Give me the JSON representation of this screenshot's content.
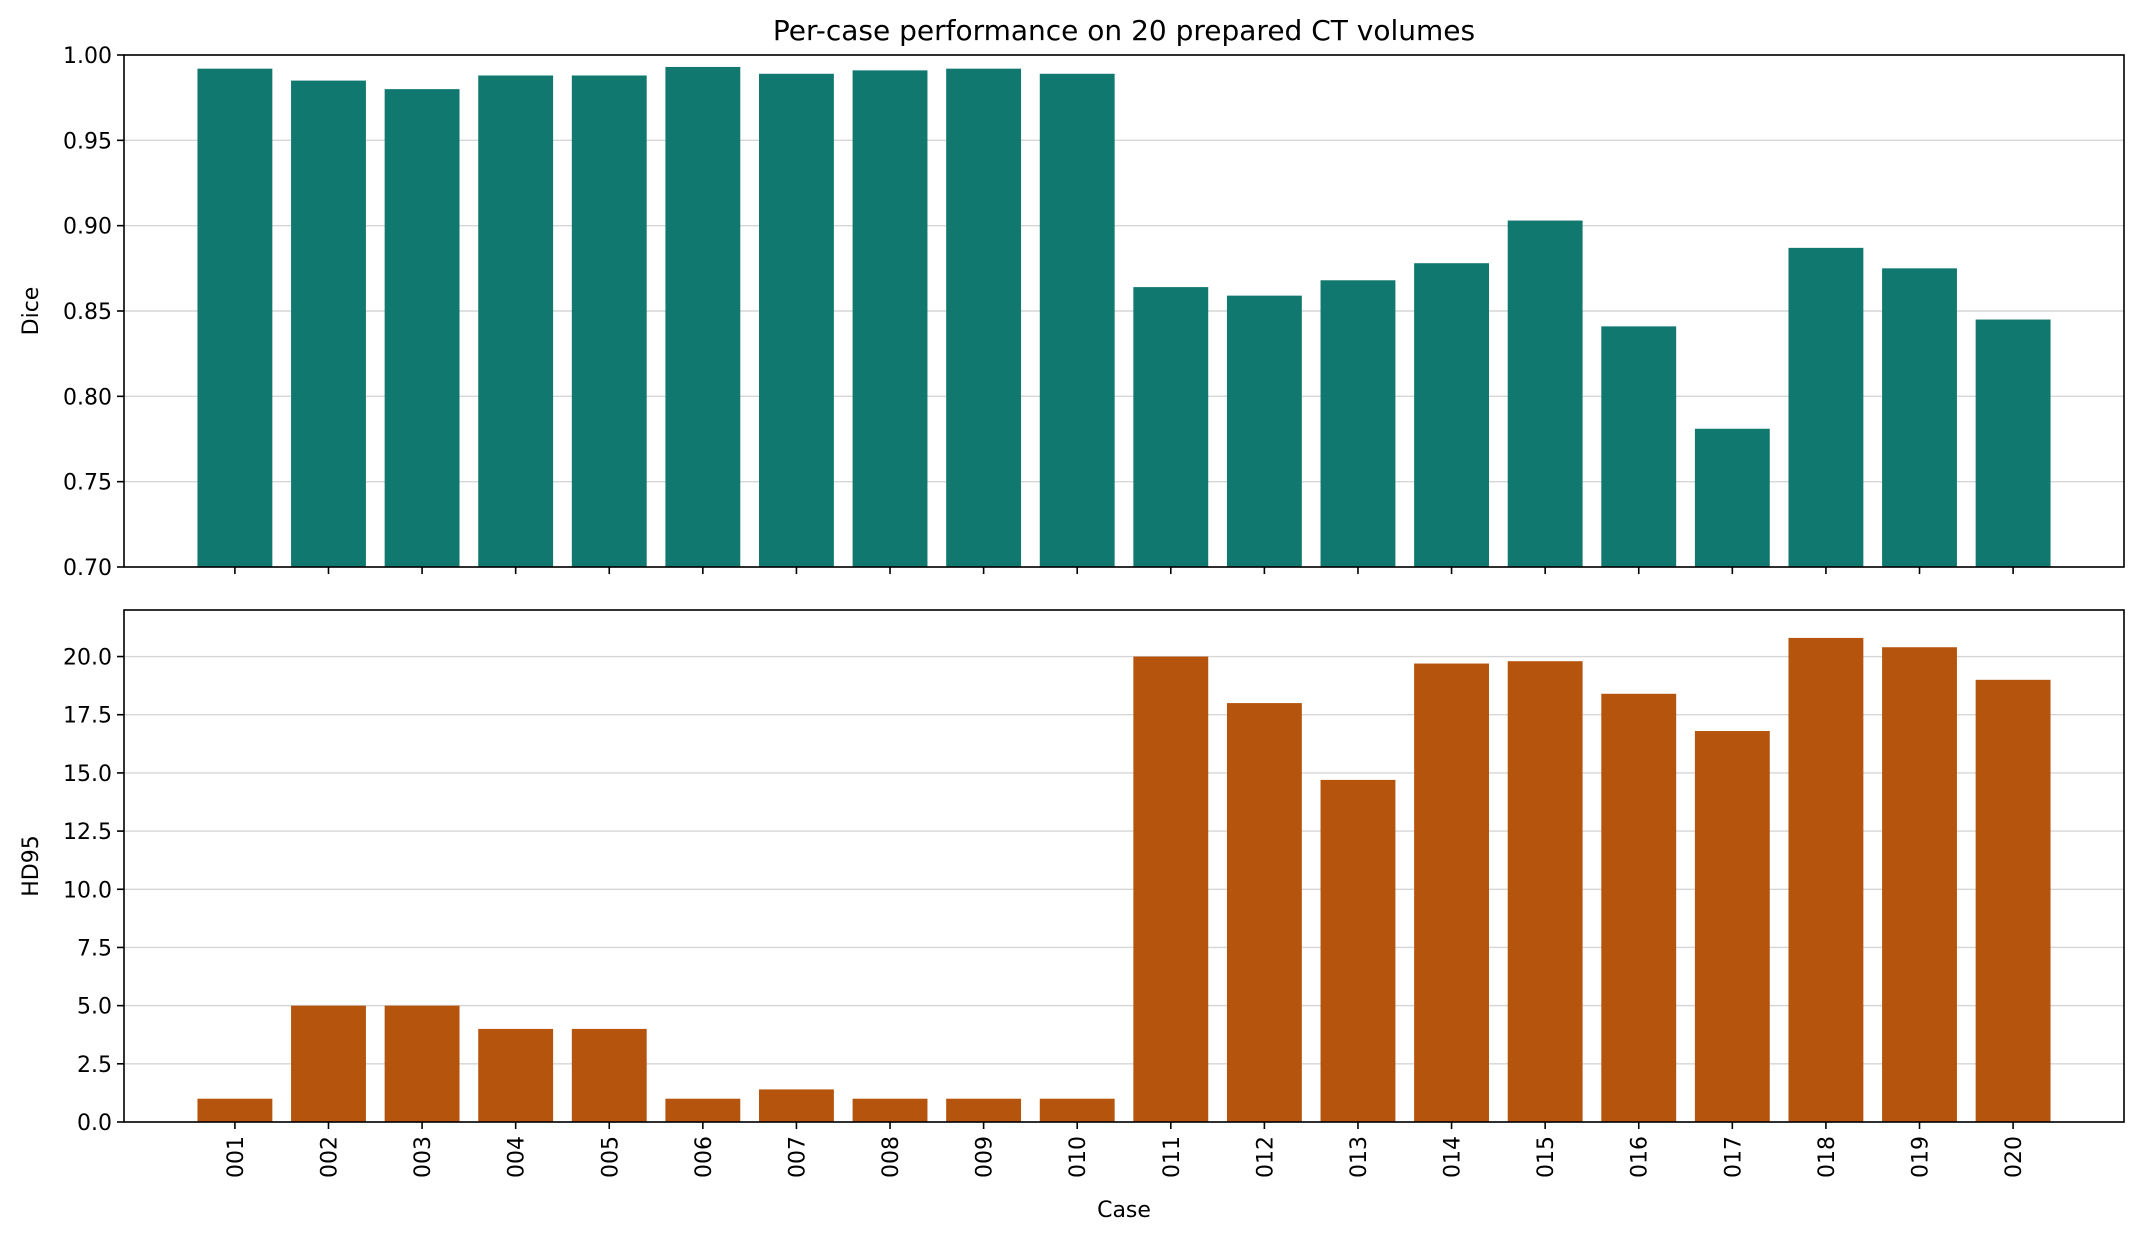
{
  "chart_data": {
    "title": "Per-case performance on 20 prepared CT volumes",
    "categories": [
      "001",
      "002",
      "003",
      "004",
      "005",
      "006",
      "007",
      "008",
      "009",
      "010",
      "011",
      "012",
      "013",
      "014",
      "015",
      "016",
      "017",
      "018",
      "019",
      "020"
    ],
    "xlabel": "Case",
    "panels": [
      {
        "type": "bar",
        "ylabel": "Dice",
        "ylim": [
          0.7,
          1.0
        ],
        "yticks": [
          "0.70",
          "0.75",
          "0.80",
          "0.85",
          "0.90",
          "0.95",
          "1.00"
        ],
        "color": "#10786f",
        "grid": "horizontal",
        "values": [
          0.992,
          0.985,
          0.98,
          0.988,
          0.988,
          0.993,
          0.989,
          0.991,
          0.992,
          0.989,
          0.864,
          0.859,
          0.868,
          0.878,
          0.903,
          0.841,
          0.781,
          0.887,
          0.875,
          0.845
        ]
      },
      {
        "type": "bar",
        "ylabel": "HD95",
        "ylim": [
          0,
          22
        ],
        "yticks": [
          "0.0",
          "2.5",
          "5.0",
          "7.5",
          "10.0",
          "12.5",
          "15.0",
          "17.5",
          "20.0"
        ],
        "color": "#b5540c",
        "grid": "horizontal",
        "values": [
          1.0,
          5.0,
          5.0,
          4.0,
          4.0,
          1.0,
          1.4,
          1.0,
          1.0,
          1.0,
          20.0,
          18.0,
          14.7,
          19.7,
          19.8,
          18.4,
          16.8,
          20.8,
          20.4,
          19.0
        ]
      }
    ]
  }
}
